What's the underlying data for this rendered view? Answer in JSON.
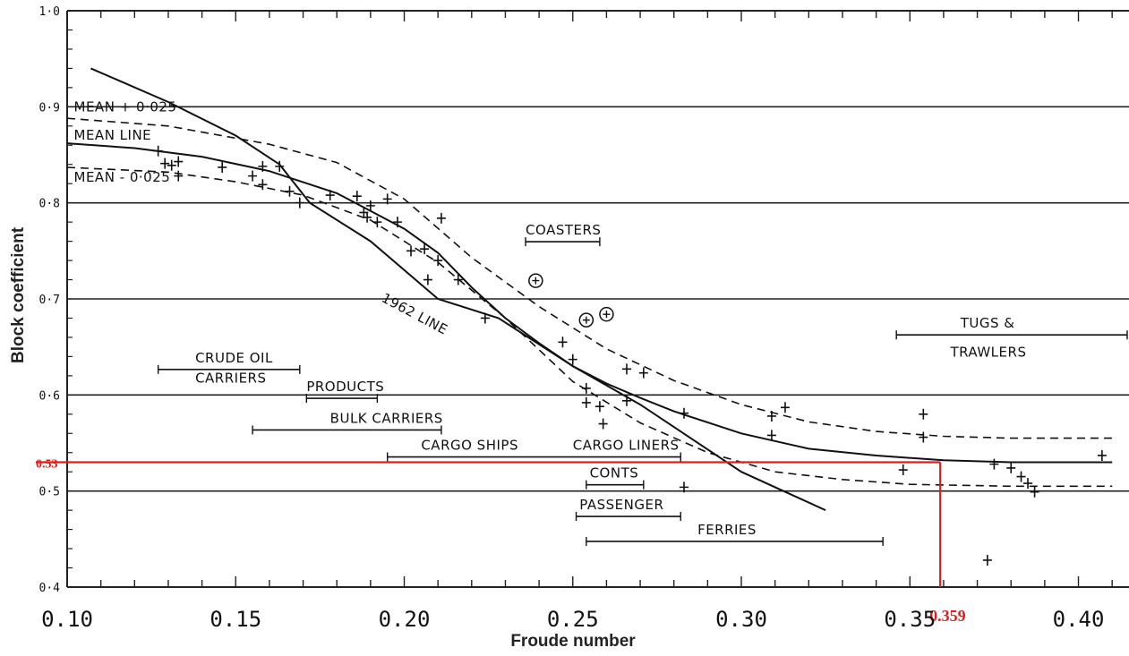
{
  "chart_data": {
    "type": "scatter",
    "xlabel": "Froude number",
    "ylabel": "Block coefficient",
    "xlim": [
      0.1,
      0.415
    ],
    "ylim": [
      0.4,
      1.0
    ],
    "x_ticks": [
      "0.10",
      "0.15",
      "0.20",
      "0.25",
      "0.30",
      "0.35",
      "0.40"
    ],
    "y_ticks": [
      "1·0",
      "0·9",
      "0·8",
      "0·7",
      "0·6",
      "0·5",
      "0·4"
    ],
    "grid": "horizontal",
    "curves": [
      {
        "label": "MEAN LINE",
        "style": "solid",
        "points": [
          [
            0.1,
            0.862
          ],
          [
            0.12,
            0.857
          ],
          [
            0.14,
            0.848
          ],
          [
            0.16,
            0.833
          ],
          [
            0.18,
            0.81
          ],
          [
            0.2,
            0.773
          ],
          [
            0.21,
            0.748
          ],
          [
            0.22,
            0.712
          ],
          [
            0.23,
            0.68
          ],
          [
            0.24,
            0.654
          ],
          [
            0.25,
            0.63
          ],
          [
            0.26,
            0.612
          ],
          [
            0.27,
            0.597
          ],
          [
            0.28,
            0.583
          ],
          [
            0.3,
            0.56
          ],
          [
            0.32,
            0.544
          ],
          [
            0.34,
            0.537
          ],
          [
            0.36,
            0.532
          ],
          [
            0.38,
            0.53
          ],
          [
            0.41,
            0.53
          ]
        ]
      },
      {
        "label": "MEAN + 0·025",
        "style": "dashed",
        "points": [
          [
            0.1,
            0.888
          ],
          [
            0.13,
            0.88
          ],
          [
            0.16,
            0.861
          ],
          [
            0.18,
            0.842
          ],
          [
            0.2,
            0.804
          ],
          [
            0.22,
            0.743
          ],
          [
            0.24,
            0.692
          ],
          [
            0.26,
            0.648
          ],
          [
            0.28,
            0.615
          ],
          [
            0.3,
            0.59
          ],
          [
            0.32,
            0.572
          ],
          [
            0.34,
            0.562
          ],
          [
            0.36,
            0.557
          ],
          [
            0.38,
            0.555
          ],
          [
            0.41,
            0.555
          ]
        ]
      },
      {
        "label": "MEAN - 0·025",
        "style": "dashed",
        "points": [
          [
            0.1,
            0.837
          ],
          [
            0.13,
            0.832
          ],
          [
            0.15,
            0.822
          ],
          [
            0.17,
            0.808
          ],
          [
            0.19,
            0.782
          ],
          [
            0.21,
            0.738
          ],
          [
            0.23,
            0.68
          ],
          [
            0.25,
            0.614
          ],
          [
            0.27,
            0.571
          ],
          [
            0.29,
            0.54
          ],
          [
            0.31,
            0.52
          ],
          [
            0.33,
            0.512
          ],
          [
            0.35,
            0.507
          ],
          [
            0.38,
            0.505
          ],
          [
            0.41,
            0.505
          ]
        ]
      },
      {
        "label": "1962 LINE",
        "style": "solid",
        "points": [
          [
            0.107,
            0.94
          ],
          [
            0.13,
            0.905
          ],
          [
            0.15,
            0.87
          ],
          [
            0.163,
            0.84
          ],
          [
            0.172,
            0.8
          ],
          [
            0.19,
            0.76
          ],
          [
            0.21,
            0.7
          ],
          [
            0.228,
            0.68
          ],
          [
            0.25,
            0.63
          ],
          [
            0.27,
            0.59
          ],
          [
            0.3,
            0.52
          ],
          [
            0.325,
            0.48
          ]
        ]
      }
    ],
    "points": [
      [
        0.127,
        0.854
      ],
      [
        0.129,
        0.841
      ],
      [
        0.131,
        0.839
      ],
      [
        0.133,
        0.843
      ],
      [
        0.133,
        0.828
      ],
      [
        0.146,
        0.837
      ],
      [
        0.155,
        0.828
      ],
      [
        0.158,
        0.838
      ],
      [
        0.158,
        0.819
      ],
      [
        0.163,
        0.838
      ],
      [
        0.166,
        0.812
      ],
      [
        0.169,
        0.8
      ],
      [
        0.178,
        0.808
      ],
      [
        0.186,
        0.807
      ],
      [
        0.188,
        0.79
      ],
      [
        0.189,
        0.785
      ],
      [
        0.19,
        0.797
      ],
      [
        0.192,
        0.78
      ],
      [
        0.195,
        0.804
      ],
      [
        0.198,
        0.78
      ],
      [
        0.202,
        0.75
      ],
      [
        0.206,
        0.752
      ],
      [
        0.207,
        0.72
      ],
      [
        0.21,
        0.74
      ],
      [
        0.211,
        0.784
      ],
      [
        0.216,
        0.72
      ],
      [
        0.224,
        0.68
      ],
      [
        0.247,
        0.655
      ],
      [
        0.25,
        0.637
      ],
      [
        0.254,
        0.607
      ],
      [
        0.254,
        0.592
      ],
      [
        0.258,
        0.588
      ],
      [
        0.259,
        0.57
      ],
      [
        0.266,
        0.594
      ],
      [
        0.266,
        0.627
      ],
      [
        0.271,
        0.623
      ],
      [
        0.283,
        0.581
      ],
      [
        0.283,
        0.504
      ],
      [
        0.309,
        0.578
      ],
      [
        0.309,
        0.558
      ],
      [
        0.313,
        0.587
      ],
      [
        0.348,
        0.522
      ],
      [
        0.354,
        0.58
      ],
      [
        0.354,
        0.556
      ],
      [
        0.373,
        0.428
      ],
      [
        0.375,
        0.528
      ],
      [
        0.38,
        0.524
      ],
      [
        0.383,
        0.515
      ],
      [
        0.385,
        0.508
      ],
      [
        0.387,
        0.499
      ],
      [
        0.407,
        0.537
      ]
    ],
    "circled_points": [
      [
        0.239,
        0.719
      ],
      [
        0.254,
        0.678
      ],
      [
        0.26,
        0.684
      ]
    ],
    "annotations": [
      {
        "text": "MEAN + 0·025",
        "x": 0.102,
        "y": 0.895
      },
      {
        "text": "MEAN LINE",
        "x": 0.102,
        "y": 0.866
      },
      {
        "text": "MEAN - 0·025",
        "x": 0.102,
        "y": 0.822
      },
      {
        "text": "1962 LINE",
        "x": 0.193,
        "y": 0.698
      },
      {
        "text": "COASTERS",
        "x": 0.236,
        "y": 0.767,
        "range": [
          0.236,
          0.258
        ]
      },
      {
        "text": "CRUDE OIL",
        "x": 0.138,
        "y": 0.634,
        "range": [
          0.127,
          0.169
        ]
      },
      {
        "text": "CARRIERS",
        "x": 0.138,
        "y": 0.613
      },
      {
        "text": "PRODUCTS",
        "x": 0.171,
        "y": 0.604,
        "range": [
          0.171,
          0.192
        ]
      },
      {
        "text": "BULK CARRIERS",
        "x": 0.178,
        "y": 0.571,
        "range": [
          0.155,
          0.211
        ]
      },
      {
        "text": "CARGO SHIPS",
        "x": 0.205,
        "y": 0.543,
        "range": [
          0.195,
          0.282
        ]
      },
      {
        "text": "CARGO LINERS",
        "x": 0.25,
        "y": 0.543
      },
      {
        "text": "CONTS",
        "x": 0.255,
        "y": 0.514,
        "range": [
          0.254,
          0.271
        ]
      },
      {
        "text": "PASSENGER",
        "x": 0.252,
        "y": 0.481,
        "range": [
          0.251,
          0.282
        ]
      },
      {
        "text": "FERRIES",
        "x": 0.287,
        "y": 0.455,
        "range": [
          0.254,
          0.342
        ]
      },
      {
        "text": "TUGS &",
        "x": 0.365,
        "y": 0.67,
        "range": [
          0.346,
          0.415
        ]
      },
      {
        "text": "TRAWLERS",
        "x": 0.362,
        "y": 0.64
      }
    ],
    "reference_line": {
      "x": 0.359,
      "y": 0.53,
      "x_label": "0.359",
      "y_label": "0.53",
      "color": "#e41b1b"
    }
  }
}
